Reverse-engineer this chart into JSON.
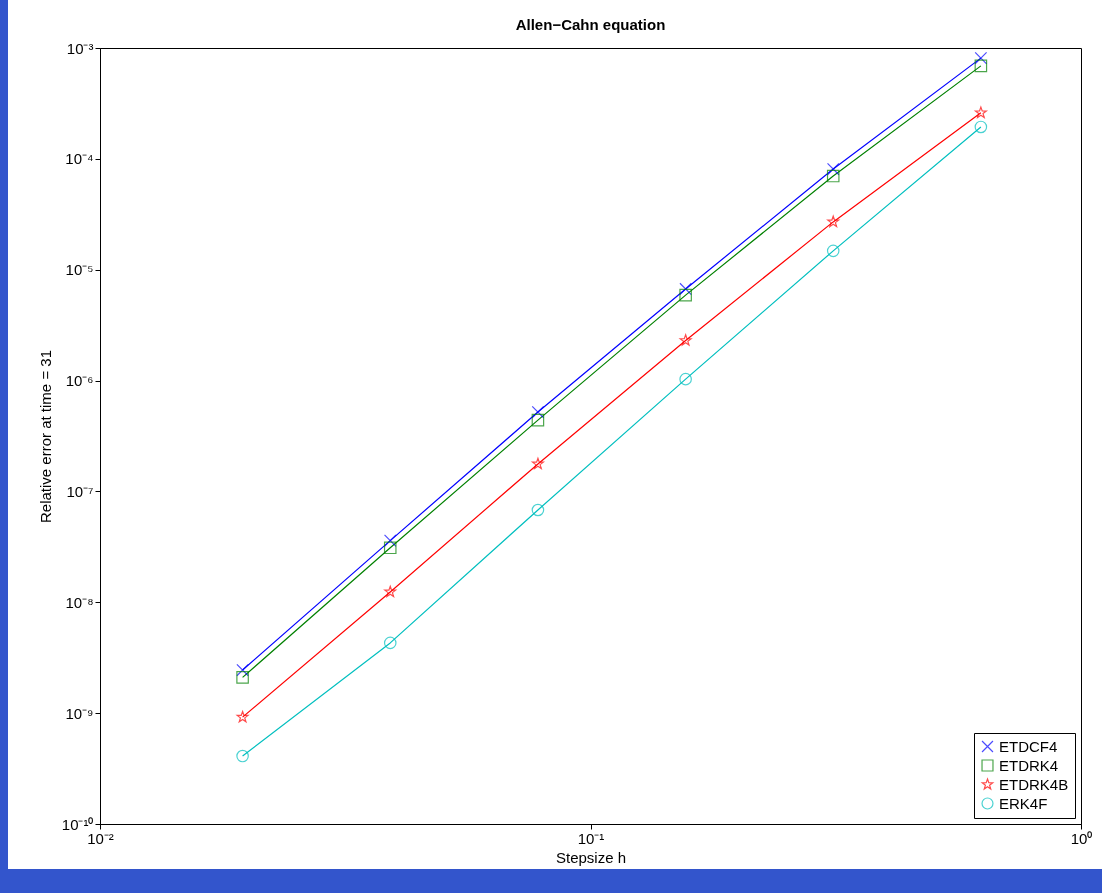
{
  "chart_data": {
    "type": "line",
    "title": "Allen−Cahn equation",
    "xlabel": "Stepsize  h",
    "ylabel": "Relative error at time = 31",
    "log": "xy",
    "grid": false,
    "legend": "bottom right",
    "x": [
      0.01953,
      0.03906,
      0.07813,
      0.1563,
      0.3125,
      0.625
    ],
    "xlim": [
      0.01,
      1
    ],
    "xticks": [
      {
        "value": 0.01,
        "label": "10⁻²"
      },
      {
        "value": 0.1,
        "label": "10⁻¹"
      },
      {
        "value": 1,
        "label": "10⁰"
      }
    ],
    "ylim": [
      1e-10,
      0.001
    ],
    "yticks": [
      {
        "value": 1e-10,
        "label": "10⁻¹⁰"
      },
      {
        "value": 1e-09,
        "label": "10⁻⁹"
      },
      {
        "value": 1e-08,
        "label": "10⁻⁸"
      },
      {
        "value": 1e-07,
        "label": "10⁻⁷"
      },
      {
        "value": 1e-06,
        "label": "10⁻⁶"
      },
      {
        "value": 1e-05,
        "label": "10⁻⁵"
      },
      {
        "value": 0.0001,
        "label": "10⁻⁴"
      },
      {
        "value": 0.001,
        "label": "10⁻³"
      }
    ],
    "series": [
      {
        "name": "ETDCF4",
        "color": "#0000ff",
        "marker": "cross",
        "values": [
          2.45e-09,
          3.6e-08,
          5.2e-07,
          6.7e-06,
          8.1e-05,
          0.00081
        ]
      },
      {
        "name": "ETDRK4",
        "color": "#008000",
        "marker": "square",
        "values": [
          2.1e-09,
          3.1e-08,
          4.4e-07,
          5.9e-06,
          7e-05,
          0.00069
        ]
      },
      {
        "name": "ETDRK4B",
        "color": "#ff0000",
        "marker": "star",
        "values": [
          9.2e-10,
          1.24e-08,
          1.77e-07,
          2.3e-06,
          2.7e-05,
          0.00026
        ]
      },
      {
        "name": "ERK4F",
        "color": "#00bfbf",
        "marker": "circle",
        "values": [
          4.1e-10,
          4.3e-09,
          6.8e-08,
          1.03e-06,
          1.48e-05,
          0.000194
        ]
      }
    ]
  }
}
